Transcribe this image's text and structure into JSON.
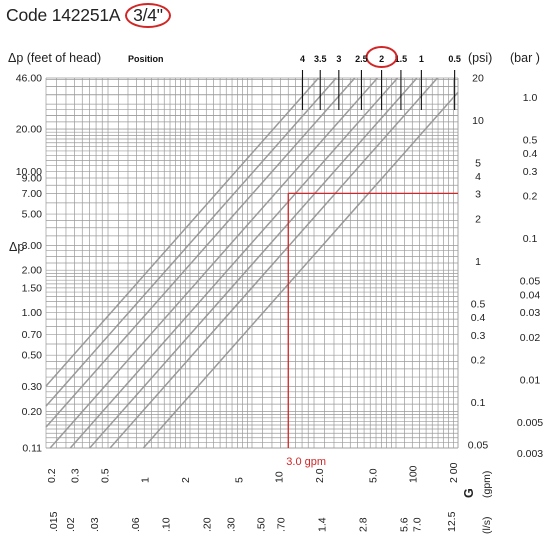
{
  "page_title": {
    "code": "Code 142251A",
    "size": "3/4\""
  },
  "colors": {
    "grid": "#9a9a9a",
    "series": "#9a9a9a",
    "reading": "#d22626",
    "highlight_circle": "#d22626",
    "text": "#222222"
  },
  "chart_data": {
    "type": "line",
    "x_scale": "log",
    "y_scale": "log",
    "grid": true,
    "xlim_gpm": [
      0.2,
      20
    ],
    "ylim_feet": [
      0.11,
      46
    ],
    "header": {
      "dp_label": "Δp  (feet of head)",
      "position_label": "Position",
      "psi_label": "(psi)",
      "bar_label": "(bar )"
    },
    "y_left_axis_label": "Δp",
    "y_left_ticks_feet": [
      "46.00",
      "20.00",
      "10.00",
      "9.00",
      "7.00",
      "5.00",
      "3.00",
      "2.00",
      "1.50",
      "1.00",
      "0.70",
      "0.50",
      "0.30",
      "0.20",
      "0.11"
    ],
    "y_right_ticks_psi": [
      "20",
      "10",
      "5",
      "4",
      "3",
      "2",
      "1",
      "0.5",
      "0.4",
      "0.3",
      "0.2",
      "0.1",
      "0.05"
    ],
    "y_right_ticks_bar": [
      "1.0",
      "0.5",
      "0.4",
      "0.3",
      "0.2",
      "0.1",
      "0.05",
      "0.04",
      "0.03",
      "0.02",
      "0.01",
      "0.005",
      "0.003"
    ],
    "x_ticks_gpm": [
      "0.2",
      "0.3",
      "0.5",
      "1",
      "2",
      "5",
      "10",
      "2.0",
      "5.0",
      "100",
      "2 00"
    ],
    "x_gpm_axis_label": "G",
    "x_gpm_unit": "(gpm)",
    "x_ticks_ls": [
      ".015",
      ".02",
      ".03",
      ".06",
      ".10",
      ".20",
      ".30",
      ".50",
      ".70",
      "1.4",
      "2.8",
      "5.6",
      "7.0",
      "12.5"
    ],
    "x_ls_unit": "(l/s)",
    "positions": [
      "0.5",
      "1",
      "1.5",
      "2",
      "2.5",
      "3",
      "3.5",
      "4"
    ],
    "selected_position": "2",
    "series_dp_at_1gpm_feet": [
      0.26,
      0.48,
      0.7,
      1.0,
      1.45,
      2.2,
      3.1,
      4.3
    ],
    "slope_log": 1.65,
    "reading": {
      "gpm": 3.0,
      "dp_feet": 7.0,
      "label": "3.0 gpm"
    }
  }
}
